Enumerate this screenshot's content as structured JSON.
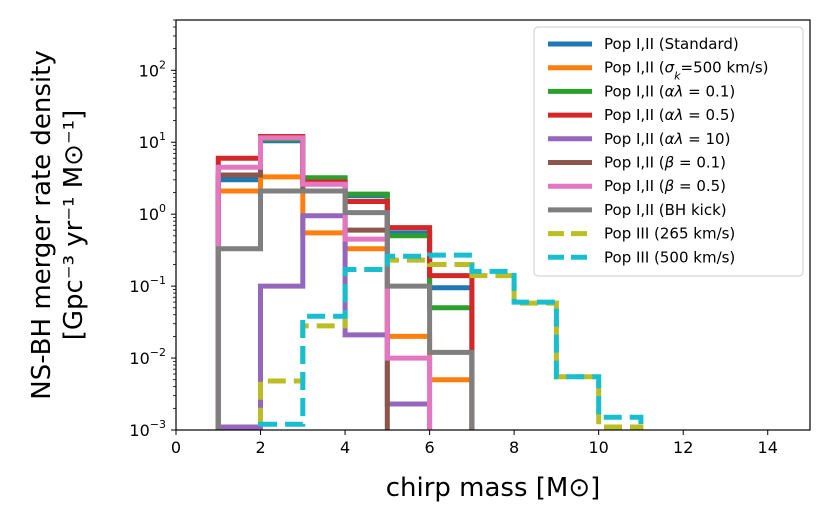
{
  "chart_data": {
    "type": "line",
    "drawstyle": "steps",
    "title": "",
    "xlabel": "chirp mass [M⊙]",
    "ylabel_line1": "NS-BH merger rate density",
    "ylabel_line2": "[Gpc⁻³ yr⁻¹ M⊙⁻¹]",
    "xlim": [
      0,
      15
    ],
    "ylim": [
      0.001,
      500
    ],
    "yscale": "log",
    "xticks": [
      0,
      2,
      4,
      6,
      8,
      10,
      12,
      14
    ],
    "xtick_labels": [
      "0",
      "2",
      "4",
      "6",
      "8",
      "10",
      "12",
      "14"
    ],
    "yticks": [
      0.001,
      0.01,
      0.1,
      1,
      10,
      100
    ],
    "ytick_labels": [
      {
        "base": "10",
        "exp": "−3"
      },
      {
        "base": "10",
        "exp": "−2"
      },
      {
        "base": "10",
        "exp": "−1"
      },
      {
        "base": "10",
        "exp": "0"
      },
      {
        "base": "10",
        "exp": "1"
      },
      {
        "base": "10",
        "exp": "2"
      }
    ],
    "legend_position": "top-right",
    "series": [
      {
        "name": "Pop I,II (Standard)",
        "label_parts": [
          {
            "t": "Pop I,II (Standard)"
          }
        ],
        "color": "#1f77b4",
        "dash": "solid",
        "edges": [
          1,
          2,
          3,
          4,
          5,
          6,
          7
        ],
        "values": [
          3.0,
          10.5,
          2.8,
          1.8,
          0.55,
          0.095
        ]
      },
      {
        "name": "Pop I,II (σk=500 km/s)",
        "label_parts": [
          {
            "t": "Pop I,II ("
          },
          {
            "t": "σ",
            "i": true
          },
          {
            "t": "k",
            "i": true,
            "sub": true
          },
          {
            "t": "=500 km/s)"
          }
        ],
        "color": "#ff7f0e",
        "dash": "solid",
        "edges": [
          1,
          2,
          3,
          4,
          5,
          6,
          7
        ],
        "values": [
          2.1,
          3.3,
          0.55,
          0.33,
          0.02,
          0.005
        ]
      },
      {
        "name": "Pop I,II (αλ = 0.1)",
        "label_parts": [
          {
            "t": "Pop I,II ("
          },
          {
            "t": "αλ",
            "i": true
          },
          {
            "t": " = 0.1)"
          }
        ],
        "color": "#2ca02c",
        "dash": "solid",
        "edges": [
          1,
          2,
          3,
          4,
          5,
          6,
          7
        ],
        "values": [
          3.5,
          11.0,
          3.2,
          1.9,
          0.5,
          0.05
        ]
      },
      {
        "name": "Pop I,II (αλ = 0.5)",
        "label_parts": [
          {
            "t": "Pop I,II ("
          },
          {
            "t": "αλ",
            "i": true
          },
          {
            "t": " = 0.5)"
          }
        ],
        "color": "#d62728",
        "dash": "solid",
        "edges": [
          1,
          2,
          3,
          4,
          5,
          6,
          7
        ],
        "values": [
          6.0,
          12.0,
          2.8,
          1.5,
          0.65,
          0.14
        ]
      },
      {
        "name": "Pop I,II (αλ = 10)",
        "label_parts": [
          {
            "t": "Pop I,II ("
          },
          {
            "t": "αλ",
            "i": true
          },
          {
            "t": " = 10)"
          }
        ],
        "color": "#9467bd",
        "dash": "solid",
        "edges": [
          1,
          2,
          3,
          4,
          5,
          6
        ],
        "values": [
          0.0011,
          0.1,
          0.95,
          0.021,
          0.0023
        ]
      },
      {
        "name": "Pop I,II (β = 0.1)",
        "label_parts": [
          {
            "t": "Pop I,II ("
          },
          {
            "t": "β",
            "i": true
          },
          {
            "t": " = 0.1)"
          }
        ],
        "color": "#8c564b",
        "dash": "solid",
        "edges": [
          1,
          2,
          3,
          4,
          5
        ],
        "values": [
          3.5,
          11.5,
          2.1,
          0.6
        ]
      },
      {
        "name": "Pop I,II (β = 0.5)",
        "label_parts": [
          {
            "t": "Pop I,II ("
          },
          {
            "t": "β",
            "i": true
          },
          {
            "t": " = 0.5)"
          }
        ],
        "color": "#e377c2",
        "dash": "solid",
        "edges": [
          1,
          2,
          3,
          4,
          5,
          6
        ],
        "values": [
          4.5,
          11.5,
          2.6,
          0.45,
          0.01
        ]
      },
      {
        "name": "Pop I,II (BH kick)",
        "label_parts": [
          {
            "t": "Pop I,II (BH kick)"
          }
        ],
        "color": "#7f7f7f",
        "dash": "solid",
        "edges": [
          1,
          2,
          3,
          4,
          5,
          6,
          7
        ],
        "values": [
          0.33,
          2.1,
          2.1,
          1.05,
          0.1,
          0.012
        ]
      },
      {
        "name": "Pop III (265 km/s)",
        "label_parts": [
          {
            "t": "Pop III (265 km/s)"
          }
        ],
        "color": "#bcbd22",
        "dash": "dashed",
        "edges": [
          2,
          3,
          4,
          5,
          6,
          7,
          8,
          9,
          10,
          11
        ],
        "values": [
          0.0048,
          0.028,
          0.17,
          0.23,
          0.2,
          0.14,
          0.058,
          0.0055,
          0.0011
        ]
      },
      {
        "name": "Pop III (500 km/s)",
        "label_parts": [
          {
            "t": "Pop III (500 km/s)"
          }
        ],
        "color": "#17becf",
        "dash": "dashed",
        "edges": [
          2,
          3,
          4,
          5,
          6,
          7,
          8,
          9,
          10,
          11
        ],
        "values": [
          0.0012,
          0.038,
          0.17,
          0.26,
          0.27,
          0.16,
          0.06,
          0.0055,
          0.0015
        ]
      }
    ]
  }
}
